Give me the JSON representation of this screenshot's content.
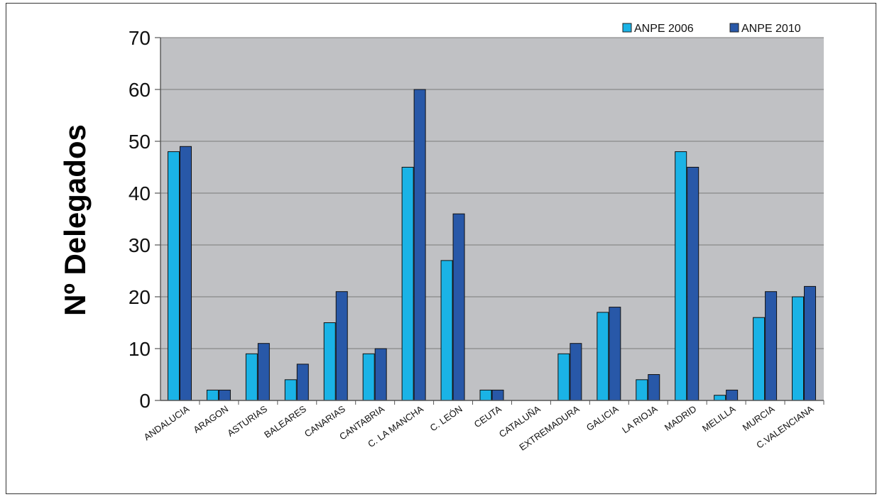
{
  "chart_data": {
    "type": "bar",
    "title": "",
    "ylabel": "Nº Delegados",
    "xlabel": "",
    "ylim": [
      0,
      70
    ],
    "yticks": [
      0,
      10,
      20,
      30,
      40,
      50,
      60,
      70
    ],
    "grid": true,
    "legend_position": "top-right",
    "categories": [
      "ANDALUCIA",
      "ARAGON",
      "ASTURIAS",
      "BALEARES",
      "CANARIAS",
      "CANTABRIA",
      "C. LA MANCHA",
      "C. LEÓN",
      "CEUTA",
      "CATALUÑA",
      "EXTREMADURA",
      "GALICIA",
      "LA RIOJA",
      "MADRID",
      "MELILLA",
      "MURCIA",
      "C.VALENCIANA"
    ],
    "series": [
      {
        "name": "ANPE 2006",
        "color": "#1ab3e6",
        "values": [
          48,
          2,
          9,
          4,
          15,
          9,
          45,
          27,
          2,
          0,
          9,
          17,
          4,
          48,
          1,
          16,
          20
        ]
      },
      {
        "name": "ANPE 2010",
        "color": "#2858a8",
        "values": [
          49,
          2,
          11,
          7,
          21,
          10,
          60,
          36,
          2,
          0,
          11,
          18,
          5,
          45,
          2,
          21,
          22
        ]
      }
    ],
    "colors": {
      "plot_background": "#c0c1c4",
      "gridline": "#7a7a7a",
      "bar_outline": "#111111"
    }
  }
}
